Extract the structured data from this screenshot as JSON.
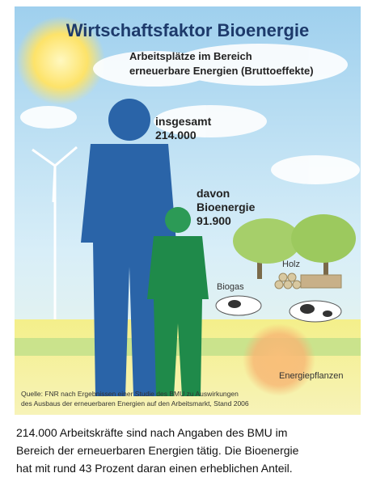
{
  "infographic": {
    "title": "Wirtschaftsfaktor Bioenergie",
    "subtitle": [
      "Arbeitsplätze im Bereich",
      "erneuerbare Energien (Bruttoeffekte)"
    ],
    "total": {
      "label": "insgesamt",
      "value": "214.000"
    },
    "bio": {
      "label": [
        "davon",
        "Bioenergie"
      ],
      "value": "91.900"
    },
    "labels": {
      "wood": "Holz",
      "biogas": "Biogas",
      "crops": "Energiepflanzen"
    },
    "source": [
      "Quelle: FNR nach Ergebnissen einer Studie des BMU zu Auswirkungen",
      "des Ausbaus der erneuerbaren Energien auf den Arbeitsmarkt, Stand 2006"
    ]
  },
  "caption": [
    "214.000 Arbeitskräfte sind nach Angaben des BMU im",
    "Bereich der erneuerbaren Energien tätig. Die Bioenergie",
    "hat mit rund 43 Prozent daran einen erheblichen Anteil."
  ]
}
